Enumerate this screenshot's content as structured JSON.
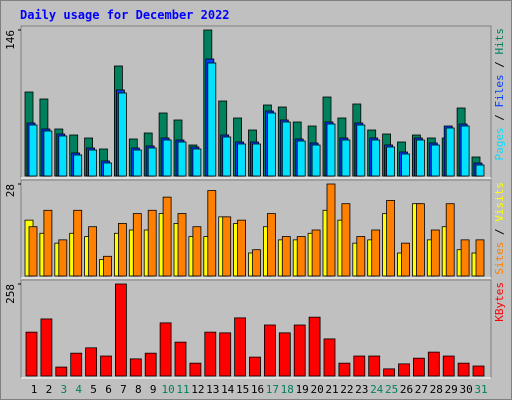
{
  "chart_data": [
    {
      "type": "bar",
      "title": "Daily usage for December 2022",
      "legend_separator": " / ",
      "ylim": [
        0,
        146
      ],
      "yticks": [
        146
      ],
      "series": [
        {
          "name": "Pages",
          "color": "#00e0ff",
          "values": [
            51,
            45,
            40,
            21,
            26,
            13,
            83,
            26,
            28,
            36,
            34,
            27,
            113,
            39,
            32,
            32,
            63,
            54,
            35,
            31,
            52,
            36,
            51,
            36,
            29,
            22,
            36,
            31,
            48,
            50,
            11
          ]
        },
        {
          "name": "Files",
          "color": "#0040ff",
          "values": [
            53,
            47,
            42,
            23,
            28,
            15,
            86,
            28,
            30,
            38,
            36,
            29,
            117,
            41,
            34,
            34,
            65,
            56,
            37,
            33,
            54,
            38,
            53,
            38,
            31,
            24,
            38,
            33,
            50,
            52,
            13
          ]
        },
        {
          "name": "Hits",
          "color": "#00805c",
          "values": [
            84,
            77,
            47,
            41,
            38,
            27,
            110,
            37,
            43,
            63,
            56,
            31,
            146,
            75,
            58,
            46,
            71,
            69,
            54,
            50,
            79,
            58,
            72,
            46,
            42,
            34,
            41,
            38,
            38,
            68,
            19
          ]
        }
      ]
    },
    {
      "type": "bar",
      "legend_separator": " / ",
      "ylim": [
        0,
        28
      ],
      "yticks": [
        28
      ],
      "series": [
        {
          "name": "Sites",
          "color": "#ff8000",
          "values": [
            15,
            20,
            11,
            20,
            15,
            6,
            16,
            19,
            20,
            24,
            19,
            15,
            26,
            18,
            17,
            8,
            19,
            12,
            12,
            14,
            28,
            22,
            12,
            14,
            23,
            10,
            22,
            14,
            22,
            11,
            11
          ]
        },
        {
          "name": "Visits",
          "color": "#ffff00",
          "values": [
            17,
            13,
            10,
            13,
            12,
            5,
            13,
            14,
            14,
            19,
            16,
            12,
            12,
            18,
            16,
            7,
            15,
            11,
            11,
            13,
            20,
            17,
            10,
            11,
            19,
            7,
            22,
            11,
            15,
            8,
            7
          ]
        }
      ]
    },
    {
      "type": "bar",
      "ylim": [
        0,
        258
      ],
      "yticks": [
        258
      ],
      "categories": [
        "1",
        "2",
        "3",
        "4",
        "5",
        "6",
        "7",
        "8",
        "9",
        "10",
        "11",
        "12",
        "13",
        "14",
        "15",
        "16",
        "17",
        "18",
        "19",
        "20",
        "21",
        "22",
        "23",
        "24",
        "25",
        "26",
        "27",
        "28",
        "29",
        "30",
        "31"
      ],
      "category_colors": [
        "#000000",
        "#000000",
        "#00805c",
        "#00805c",
        "#000000",
        "#000000",
        "#000000",
        "#000000",
        "#000000",
        "#00805c",
        "#00805c",
        "#000000",
        "#000000",
        "#000000",
        "#000000",
        "#000000",
        "#00805c",
        "#00805c",
        "#000000",
        "#000000",
        "#000000",
        "#000000",
        "#000000",
        "#00805c",
        "#00805c",
        "#000000",
        "#000000",
        "#000000",
        "#000000",
        "#000000",
        "#00805c"
      ],
      "series": [
        {
          "name": "KBytes",
          "color": "#ff0000",
          "values": [
            123,
            160,
            25,
            64,
            79,
            56,
            258,
            48,
            64,
            149,
            95,
            36,
            123,
            121,
            163,
            53,
            143,
            121,
            143,
            165,
            104,
            36,
            56,
            56,
            20,
            34,
            50,
            67,
            56,
            36,
            28
          ]
        }
      ]
    }
  ]
}
